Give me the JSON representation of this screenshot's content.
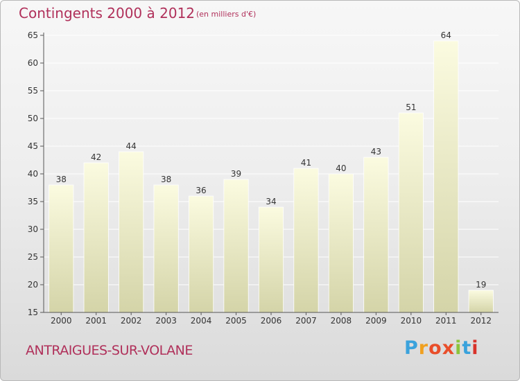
{
  "header": {
    "title": "Contingents 2000 à 2012",
    "unit": "(en milliers d'€)"
  },
  "footer": {
    "commune": "ANTRAIGUES-SUR-VOLANE",
    "logo": "Proxiti",
    "logo_colors": [
      "#3aa2dc",
      "#f0a020",
      "#e94e2a",
      "#e94e2a",
      "#8cc43c",
      "#3aa2dc",
      "#d8322a"
    ]
  },
  "colors": {
    "text_accent": "#b0305a",
    "bar_top": "#fbfbe0",
    "bar_bottom": "#d4d4a8",
    "axis": "#555555",
    "grid": "#ffffff"
  },
  "chart_data": {
    "type": "bar",
    "title": "Contingents 2000 à 2012",
    "subtitle": "(en milliers d'€)",
    "xlabel": "",
    "ylabel": "",
    "categories": [
      "2000",
      "2001",
      "2002",
      "2003",
      "2004",
      "2005",
      "2006",
      "2007",
      "2008",
      "2009",
      "2010",
      "2011",
      "2012"
    ],
    "values": [
      38,
      42,
      44,
      38,
      36,
      39,
      34,
      41,
      40,
      43,
      51,
      64,
      19
    ],
    "ylim": [
      15,
      65
    ],
    "yticks": [
      15,
      20,
      25,
      30,
      35,
      40,
      45,
      50,
      55,
      60,
      65
    ],
    "grid": true,
    "data_labels": true
  }
}
